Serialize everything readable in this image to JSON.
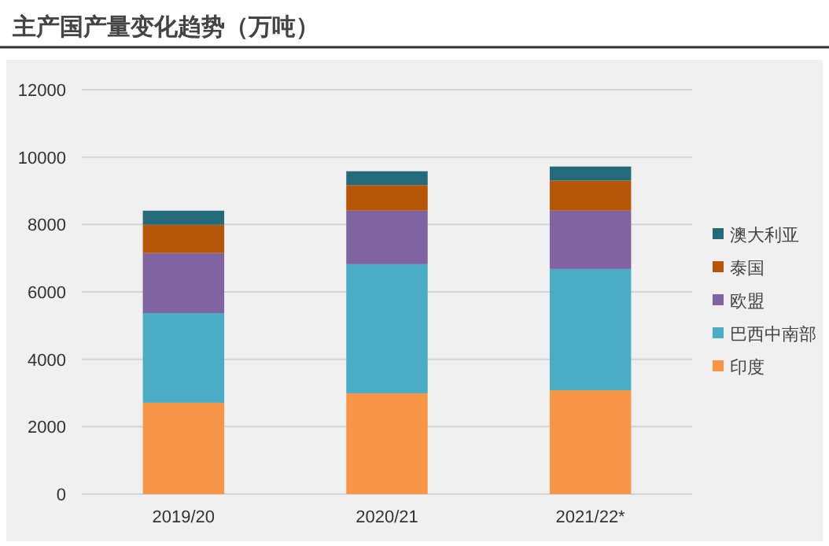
{
  "chart_data": {
    "type": "bar",
    "stacked": true,
    "title": "主产国产量变化趋势（万吨）",
    "categories": [
      "2019/20",
      "2020/21",
      "2021/22*"
    ],
    "series": [
      {
        "name": "印度",
        "color": "#f79646",
        "values": [
          2710,
          2990,
          3080
        ]
      },
      {
        "name": "巴西中南部",
        "color": "#4bacc6",
        "values": [
          2660,
          3830,
          3600
        ]
      },
      {
        "name": "欧盟",
        "color": "#8064a2",
        "values": [
          1780,
          1590,
          1730
        ]
      },
      {
        "name": "泰国",
        "color": "#b65708",
        "values": [
          840,
          760,
          890
        ]
      },
      {
        "name": "澳大利亚",
        "color": "#256a79",
        "values": [
          420,
          410,
          420
        ]
      }
    ],
    "ylim": [
      0,
      12000
    ],
    "yticks": [
      0,
      2000,
      4000,
      6000,
      8000,
      10000,
      12000
    ],
    "grid": "y",
    "legend": "right"
  }
}
